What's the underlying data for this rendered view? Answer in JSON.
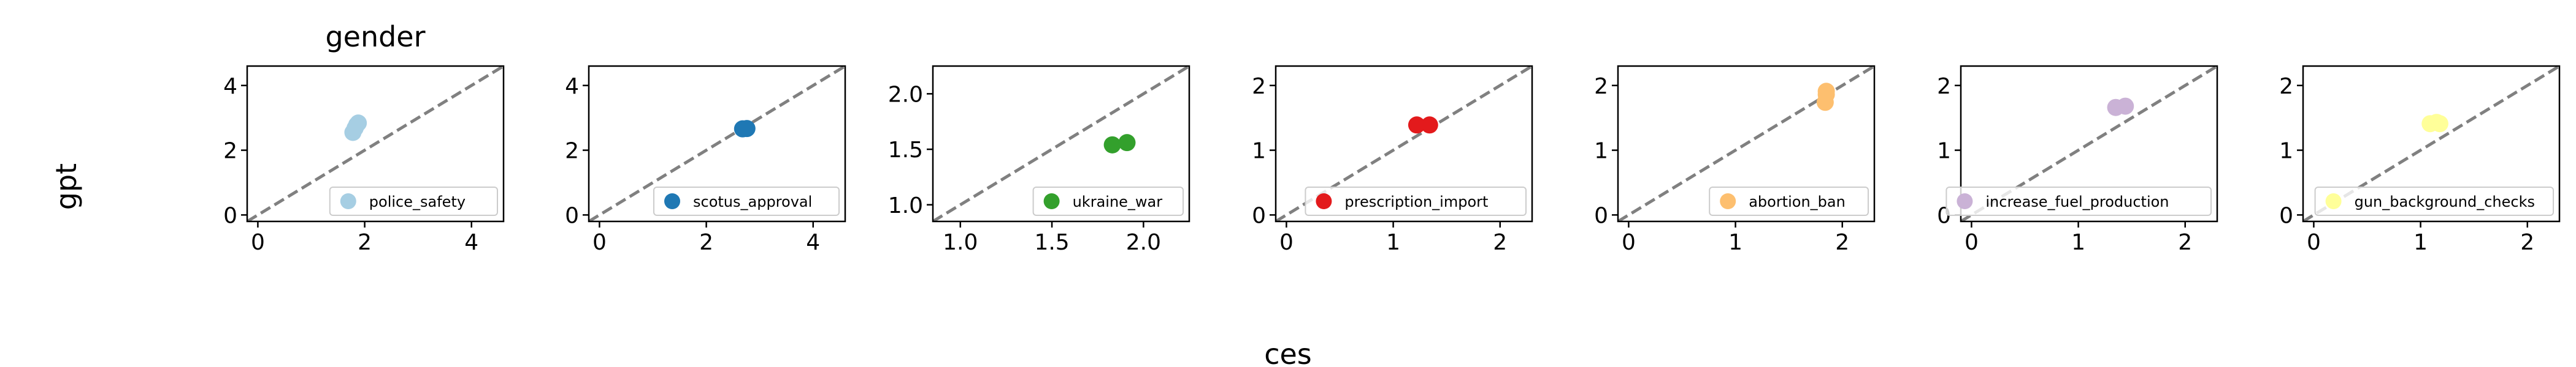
{
  "figure": {
    "title": "gender",
    "xlabel": "ces",
    "ylabel": "gpt"
  },
  "chart_data": [
    {
      "type": "scatter",
      "legend": "police_safety",
      "color": "#a6cee3",
      "xlim": [
        -0.2,
        4.6
      ],
      "ylim": [
        -0.2,
        4.6
      ],
      "xticks": [
        0,
        2,
        4
      ],
      "yticks": [
        0,
        2,
        4
      ],
      "xtick_labels": [
        "0",
        "2",
        "4"
      ],
      "ytick_labels": [
        "0",
        "2",
        "4"
      ],
      "points": [
        {
          "x": 1.78,
          "y": 2.55
        },
        {
          "x": 1.82,
          "y": 2.68
        },
        {
          "x": 1.85,
          "y": 2.78
        },
        {
          "x": 1.88,
          "y": 2.84
        }
      ],
      "diagonal": true,
      "grid": false,
      "legend_loc": "lower right"
    },
    {
      "type": "scatter",
      "legend": "scotus_approval",
      "color": "#1f78b4",
      "xlim": [
        -0.2,
        4.6
      ],
      "ylim": [
        -0.2,
        4.6
      ],
      "xticks": [
        0,
        2,
        4
      ],
      "yticks": [
        0,
        2,
        4
      ],
      "xtick_labels": [
        "0",
        "2",
        "4"
      ],
      "ytick_labels": [
        "0",
        "2",
        "4"
      ],
      "points": [
        {
          "x": 2.68,
          "y": 2.66
        },
        {
          "x": 2.76,
          "y": 2.67
        }
      ],
      "diagonal": true,
      "grid": false,
      "legend_loc": "lower right"
    },
    {
      "type": "scatter",
      "legend": "ukraine_war",
      "color": "#33a02c",
      "xlim": [
        0.85,
        2.25
      ],
      "ylim": [
        0.85,
        2.25
      ],
      "xticks": [
        1.0,
        1.5,
        2.0
      ],
      "yticks": [
        1.0,
        1.5,
        2.0
      ],
      "xtick_labels": [
        "1.0",
        "1.5",
        "2.0"
      ],
      "ytick_labels": [
        "1.0",
        "1.5",
        "2.0"
      ],
      "points": [
        {
          "x": 1.83,
          "y": 1.54
        },
        {
          "x": 1.91,
          "y": 1.56
        }
      ],
      "diagonal": true,
      "grid": false,
      "legend_loc": "lower right"
    },
    {
      "type": "scatter",
      "legend": "prescription_import",
      "color": "#e31a1c",
      "xlim": [
        -0.1,
        2.3
      ],
      "ylim": [
        -0.1,
        2.3
      ],
      "xticks": [
        0,
        1,
        2
      ],
      "yticks": [
        0,
        1,
        2
      ],
      "xtick_labels": [
        "0",
        "1",
        "2"
      ],
      "ytick_labels": [
        "0",
        "1",
        "2"
      ],
      "points": [
        {
          "x": 1.22,
          "y": 1.39
        },
        {
          "x": 1.34,
          "y": 1.39
        }
      ],
      "diagonal": true,
      "grid": false,
      "legend_loc": "lower right"
    },
    {
      "type": "scatter",
      "legend": "abortion_ban",
      "color": "#fdbf6f",
      "xlim": [
        -0.1,
        2.3
      ],
      "ylim": [
        -0.1,
        2.3
      ],
      "xticks": [
        0,
        1,
        2
      ],
      "yticks": [
        0,
        1,
        2
      ],
      "xtick_labels": [
        "0",
        "1",
        "2"
      ],
      "ytick_labels": [
        "0",
        "1",
        "2"
      ],
      "points": [
        {
          "x": 1.84,
          "y": 1.74
        },
        {
          "x": 1.85,
          "y": 1.86
        },
        {
          "x": 1.85,
          "y": 1.91
        }
      ],
      "diagonal": true,
      "grid": false,
      "legend_loc": "lower right"
    },
    {
      "type": "scatter",
      "legend": "increase_fuel_production",
      "color": "#cab2d6",
      "xlim": [
        -0.1,
        2.3
      ],
      "ylim": [
        -0.1,
        2.3
      ],
      "xticks": [
        0,
        1,
        2
      ],
      "yticks": [
        0,
        1,
        2
      ],
      "xtick_labels": [
        "0",
        "1",
        "2"
      ],
      "ytick_labels": [
        "0",
        "1",
        "2"
      ],
      "points": [
        {
          "x": 1.35,
          "y": 1.66
        },
        {
          "x": 1.44,
          "y": 1.68
        }
      ],
      "diagonal": true,
      "grid": false,
      "legend_loc": "lower right"
    },
    {
      "type": "scatter",
      "legend": "gun_background_checks",
      "color": "#ffff99",
      "xlim": [
        -0.1,
        2.3
      ],
      "ylim": [
        -0.1,
        2.3
      ],
      "xticks": [
        0,
        1,
        2
      ],
      "yticks": [
        0,
        1,
        2
      ],
      "xtick_labels": [
        "0",
        "1",
        "2"
      ],
      "ytick_labels": [
        "0",
        "1",
        "2"
      ],
      "points": [
        {
          "x": 1.09,
          "y": 1.41
        },
        {
          "x": 1.15,
          "y": 1.43
        },
        {
          "x": 1.18,
          "y": 1.41
        }
      ],
      "diagonal": true,
      "grid": false,
      "legend_loc": "lower right"
    }
  ]
}
